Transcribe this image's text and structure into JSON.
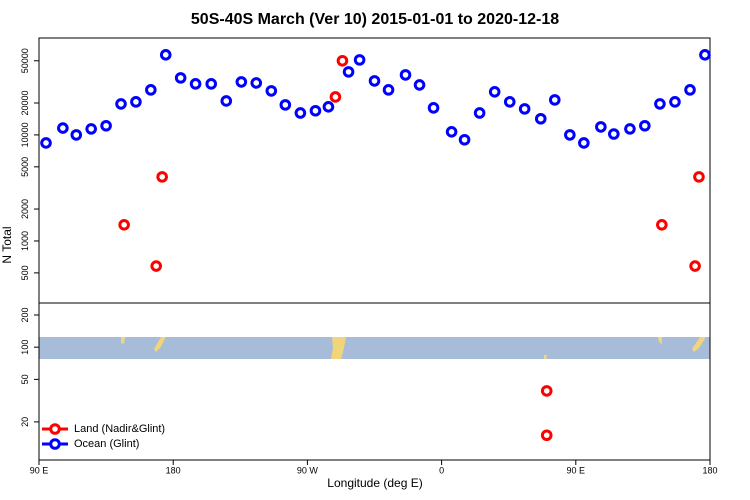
{
  "chart_data": [
    {
      "type": "scatter",
      "title": "50S-40S March (Ver 10)   2015-01-01 to 2020-12-18",
      "ylabel": "N Total",
      "log_y": true,
      "xlim": [
        90,
        540
      ],
      "ylim": [
        260,
        82000
      ],
      "yticks": [
        500,
        1000,
        2000,
        5000,
        10000,
        20000,
        50000
      ],
      "legend": "lower left",
      "series": [
        {
          "name": "Land (Nadir&Glint)",
          "color": "#ff0000",
          "x": [
            147.1,
            172.6,
            168.6,
            288.8,
            293.5,
            507.7,
            532.6,
            530
          ],
          "values": [
            1420,
            4020,
            580,
            22800,
            50000,
            1420,
            4020,
            580
          ]
        },
        {
          "name": "Ocean (Glint)",
          "color": "#0000ff",
          "x": [
            94.7,
            106,
            115,
            125,
            135,
            145,
            155,
            165,
            175,
            185,
            195,
            205.5,
            215.6,
            225.7,
            235.7,
            245.8,
            255.2,
            265.3,
            275.4,
            284.1,
            297.6,
            305,
            315,
            324.4,
            335.8,
            345.2,
            354.6,
            366.7,
            375.4,
            385.5,
            395.6,
            405.7,
            415.7,
            426.5,
            435.9,
            446,
            455.4,
            466.8,
            475.5,
            486.3,
            496.3,
            506.4,
            516.5,
            526.6,
            536.6
          ],
          "values": [
            8400,
            11600,
            10000,
            11400,
            12200,
            19600,
            20500,
            26600,
            56900,
            34500,
            30300,
            30300,
            20900,
            31600,
            30900,
            26000,
            19200,
            16100,
            16900,
            18400,
            39300,
            51000,
            32300,
            26600,
            36800,
            29600,
            18000,
            10700,
            9000,
            16100,
            25500,
            20500,
            17600,
            14200,
            21400,
            10000,
            8400,
            11900,
            10200,
            11400,
            12200,
            19600,
            20500,
            26600,
            56900
          ]
        }
      ]
    },
    {
      "type": "scatter",
      "xlabel": "Longitude (deg E)",
      "log_y": true,
      "xlim": [
        90,
        540
      ],
      "ylim": [
        8.8,
        259
      ],
      "xticks": [
        {
          "value": 90,
          "label": "90 E"
        },
        180,
        {
          "value": 270,
          "label": "90 W"
        },
        {
          "value": 360,
          "label": "0"
        },
        {
          "value": 450,
          "label": "90 E"
        },
        {
          "value": 540,
          "label": "180"
        }
      ],
      "yticks": [
        20,
        50,
        100,
        200
      ],
      "series": [
        {
          "color": "#ff0000",
          "x": [
            430.5,
            430.5
          ],
          "values": [
            39,
            15
          ]
        }
      ]
    }
  ]
}
